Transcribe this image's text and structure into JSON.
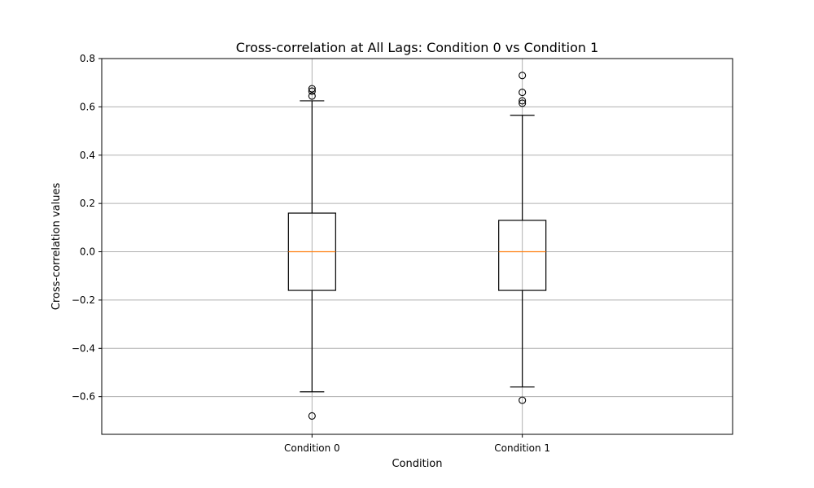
{
  "chart_data": {
    "type": "box",
    "title": "Cross-correlation at All Lags: Condition 0 vs Condition 1",
    "xlabel": "Condition",
    "ylabel": "Cross-correlation values",
    "categories": [
      "Condition 0",
      "Condition 1"
    ],
    "ylim": [
      -0.756,
      0.8
    ],
    "yticks": [
      -0.6,
      -0.4,
      -0.2,
      0.0,
      0.2,
      0.4,
      0.6,
      0.8
    ],
    "ytick_labels": [
      "−0.6",
      "−0.4",
      "−0.2",
      "0.0",
      "0.2",
      "0.4",
      "0.6",
      "0.8"
    ],
    "grid": true,
    "series": [
      {
        "whisker_low": -0.58,
        "q1": -0.16,
        "median": 0.0,
        "q3": 0.16,
        "whisker_high": 0.625,
        "outliers": [
          0.645,
          0.665,
          0.675,
          -0.68
        ]
      },
      {
        "whisker_low": -0.56,
        "q1": -0.16,
        "median": 0.0,
        "q3": 0.13,
        "whisker_high": 0.565,
        "outliers": [
          0.615,
          0.625,
          0.66,
          0.73,
          -0.615
        ]
      }
    ],
    "colors": {
      "box": "#000000",
      "median": "#ff7f0e",
      "grid": "#b0b0b0"
    }
  }
}
